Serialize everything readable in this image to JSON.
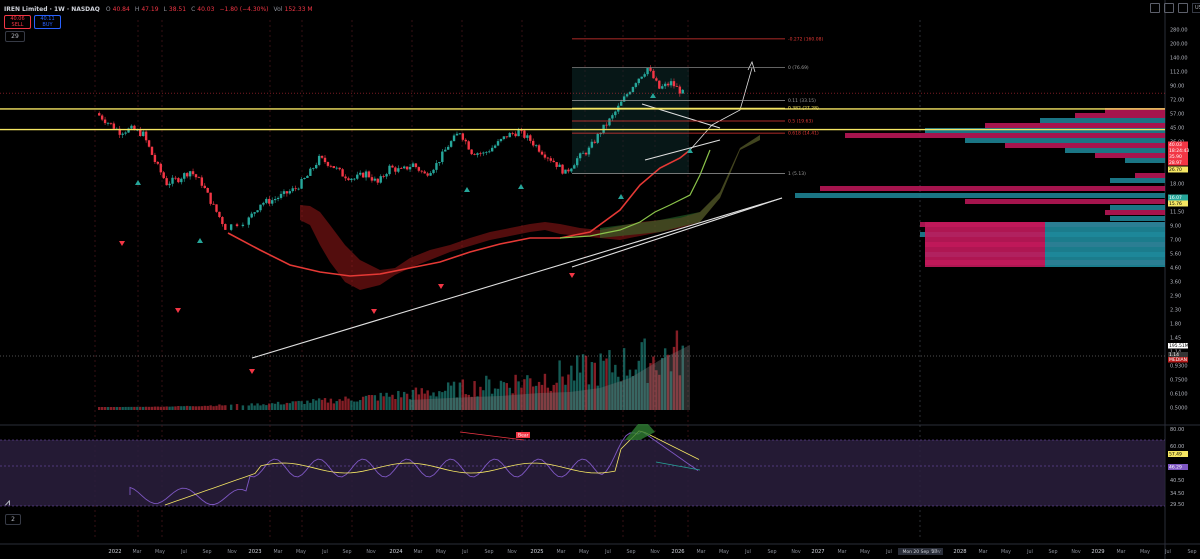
{
  "header": {
    "symbol": "IREN Limited · 1W · NASDAQ",
    "open_label": "O",
    "open": "40.84",
    "high_label": "H",
    "high": "47.19",
    "low_label": "L",
    "low": "38.51",
    "close_label": "C",
    "close": "40.03",
    "change": "−1.80 (−4.30%)",
    "vol_label": "Vol",
    "vol": "152.33 M"
  },
  "trade": {
    "sell_price": "40.06",
    "sell_label": "SELL",
    "buy_price": "40.11",
    "buy_label": "BUY"
  },
  "indicator_count": "29",
  "rsi_pane_count": "2",
  "currency": "USD",
  "colors": {
    "bull": "#26a69a",
    "bear": "#f23645",
    "ema_red": "#e53935",
    "ema_green": "#8bc34a",
    "white_line": "#e0e0e0",
    "yellow": "#f5e663",
    "rsi": "#7e57c2",
    "rsi_band": "#2a1f3d",
    "vp_pink": "#c2185b",
    "vp_teal": "#1e8a9b"
  },
  "icons": [
    "settings-icon",
    "screenshot-icon",
    "fullscreen-icon"
  ],
  "chart_data": {
    "type": "candlestick",
    "log_scale": true,
    "x_labels": [
      "2022",
      "Mar",
      "May",
      "Jul",
      "Sep",
      "Nov",
      "2023",
      "Mar",
      "May",
      "Jul",
      "Sep",
      "Nov",
      "2024",
      "Mar",
      "May",
      "Jul",
      "Sep",
      "Nov",
      "2025",
      "Mar",
      "May",
      "Jul",
      "Sep",
      "Nov",
      "2026",
      "Mar",
      "May",
      "Jul",
      "Sep",
      "Nov",
      "2027",
      "Mar",
      "May",
      "Jul",
      "Mon 20 Sep '27",
      "Nov",
      "2028",
      "Mar",
      "May",
      "Jul",
      "Sep",
      "Nov",
      "2029",
      "Mar",
      "May",
      "Jul",
      "Sep",
      "Nov",
      "Ju"
    ],
    "y_ticks": [
      "280.00",
      "200.00",
      "140.00",
      "112.00",
      "90.00",
      "72.00",
      "57.00",
      "45.00",
      "36.00",
      "29.00",
      "23.00",
      "18.00",
      "14.00",
      "11.50",
      "9.00",
      "7.00",
      "5.60",
      "4.60",
      "3.60",
      "2.90",
      "2.30",
      "1.80",
      "1.45",
      "1.14",
      "0.9300",
      "0.7500",
      "0.6100",
      "0.5000"
    ],
    "price_tags": [
      {
        "label": "40.03",
        "value": 40.03
      },
      {
        "label": "18:24:43",
        "value": 37.0
      },
      {
        "label": "35.90",
        "value": 35.9
      },
      {
        "label": "28.97",
        "value": 28.97
      },
      {
        "label": "26.70",
        "value": 26.7
      },
      {
        "label": "16.07",
        "value": 16.07
      },
      {
        "label": "15.76",
        "value": 15.76
      }
    ],
    "volume_tags": [
      {
        "label": "195.51M"
      },
      {
        "label": "1.14"
      },
      {
        "label": "MEDIAN"
      }
    ],
    "horizontal_levels": [
      {
        "value": 26.7,
        "color": "yellow"
      },
      {
        "value": 15.76,
        "color": "yellow"
      }
    ],
    "fib_levels": [
      {
        "label": "0 (76.69)",
        "value": 76.69
      },
      {
        "label": "0.11 (33.15)",
        "value": 33.15
      },
      {
        "label": "0.382 (27.28)",
        "value": 27.28
      },
      {
        "label": "0.5 (19.63)",
        "value": 19.63
      },
      {
        "label": "0.618 (14.41)",
        "value": 14.41
      },
      {
        "label": "1 (5.13)",
        "value": 5.13
      },
      {
        "label": "-0.272 (160.08)",
        "value": 160.08
      }
    ],
    "ohlc_points": [
      [
        "2021-12",
        24
      ],
      [
        "2022-01",
        19
      ],
      [
        "2022-02",
        15
      ],
      [
        "2022-03",
        16
      ],
      [
        "2022-04",
        14
      ],
      [
        "2022-05",
        7
      ],
      [
        "2022-06",
        4
      ],
      [
        "2022-07",
        4.5
      ],
      [
        "2022-08",
        5.5
      ],
      [
        "2022-09",
        4
      ],
      [
        "2022-10",
        2.2
      ],
      [
        "2022-11",
        1.3
      ],
      [
        "2023-01",
        1.6
      ],
      [
        "2023-02",
        2.4
      ],
      [
        "2023-03",
        2.6
      ],
      [
        "2023-04",
        3.0
      ],
      [
        "2023-05",
        3.5
      ],
      [
        "2023-06",
        4.8
      ],
      [
        "2023-07",
        7.5
      ],
      [
        "2023-08",
        6.5
      ],
      [
        "2023-09",
        5.0
      ],
      [
        "2023-10",
        4.5
      ],
      [
        "2023-11",
        5.2
      ],
      [
        "2023-12",
        4.0
      ],
      [
        "2024-01",
        6.0
      ],
      [
        "2024-02",
        5.5
      ],
      [
        "2024-03",
        6.5
      ],
      [
        "2024-04",
        5.0
      ],
      [
        "2024-05",
        6.5
      ],
      [
        "2024-06",
        10.5
      ],
      [
        "2024-07",
        15.0
      ],
      [
        "2024-08",
        9.0
      ],
      [
        "2024-09",
        8.5
      ],
      [
        "2024-10",
        10.5
      ],
      [
        "2024-11",
        13.5
      ],
      [
        "2024-12",
        15.0
      ],
      [
        "2025-01",
        12.0
      ],
      [
        "2025-02",
        9.0
      ],
      [
        "2025-03",
        7.0
      ],
      [
        "2025-04",
        5.2
      ],
      [
        "2025-05",
        7.5
      ],
      [
        "2025-06",
        9.5
      ],
      [
        "2025-07",
        15.0
      ],
      [
        "2025-08",
        22.0
      ],
      [
        "2025-09",
        35.0
      ],
      [
        "2025-10",
        55.0
      ],
      [
        "2025-11",
        76.0
      ],
      [
        "2025-12",
        45.0
      ],
      [
        "2026-01",
        52.0
      ],
      [
        "2026-02",
        40.03
      ]
    ],
    "rsi": {
      "y_ticks": [
        "80.00",
        "60.00",
        "57.49",
        "46.29",
        "40.50",
        "34.50",
        "29.50"
      ],
      "labels": [
        "Bear"
      ],
      "current_rsi": 46.29,
      "current_ma": 57.49
    }
  }
}
